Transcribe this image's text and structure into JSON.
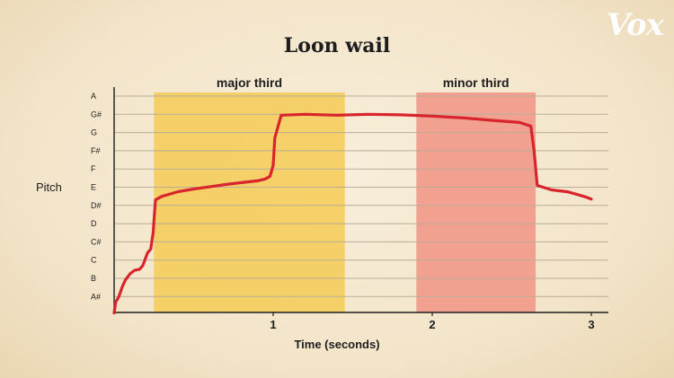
{
  "brand": {
    "logo": "Vox"
  },
  "chart_data": {
    "type": "line",
    "title": "Loon wail",
    "xlabel": "Time (seconds)",
    "ylabel": "Pitch",
    "xlim": [
      0,
      3.0
    ],
    "y_categories": [
      "A#",
      "B",
      "C",
      "C#",
      "D",
      "D#",
      "E",
      "F",
      "F#",
      "G",
      "G#",
      "A"
    ],
    "x_ticks": [
      1,
      2,
      3
    ],
    "grid": true,
    "regions": [
      {
        "label": "major third",
        "x_start": 0.25,
        "x_end": 1.45,
        "color": "#f5cd5c"
      },
      {
        "label": "minor third",
        "x_start": 1.9,
        "x_end": 2.65,
        "color": "#f2998a"
      }
    ],
    "series": [
      {
        "color": "#d8242c",
        "points": [
          [
            0.0,
            -0.9
          ],
          [
            0.01,
            -0.3
          ],
          [
            0.03,
            0.0
          ],
          [
            0.05,
            0.5
          ],
          [
            0.07,
            0.9
          ],
          [
            0.1,
            1.25
          ],
          [
            0.13,
            1.45
          ],
          [
            0.16,
            1.5
          ],
          [
            0.18,
            1.7
          ],
          [
            0.21,
            2.4
          ],
          [
            0.23,
            2.6
          ],
          [
            0.245,
            3.5
          ],
          [
            0.26,
            5.3
          ],
          [
            0.3,
            5.5
          ],
          [
            0.4,
            5.75
          ],
          [
            0.5,
            5.9
          ],
          [
            0.6,
            6.02
          ],
          [
            0.7,
            6.15
          ],
          [
            0.8,
            6.25
          ],
          [
            0.9,
            6.35
          ],
          [
            0.95,
            6.45
          ],
          [
            0.98,
            6.6
          ],
          [
            1.0,
            7.2
          ],
          [
            1.01,
            8.7
          ],
          [
            1.05,
            9.95
          ],
          [
            1.2,
            10.0
          ],
          [
            1.4,
            9.95
          ],
          [
            1.6,
            10.0
          ],
          [
            1.8,
            9.97
          ],
          [
            2.0,
            9.9
          ],
          [
            2.2,
            9.8
          ],
          [
            2.4,
            9.65
          ],
          [
            2.55,
            9.55
          ],
          [
            2.62,
            9.35
          ],
          [
            2.64,
            8.0
          ],
          [
            2.66,
            6.1
          ],
          [
            2.75,
            5.85
          ],
          [
            2.85,
            5.75
          ],
          [
            2.93,
            5.55
          ],
          [
            2.97,
            5.45
          ],
          [
            3.0,
            5.35
          ]
        ]
      }
    ]
  }
}
